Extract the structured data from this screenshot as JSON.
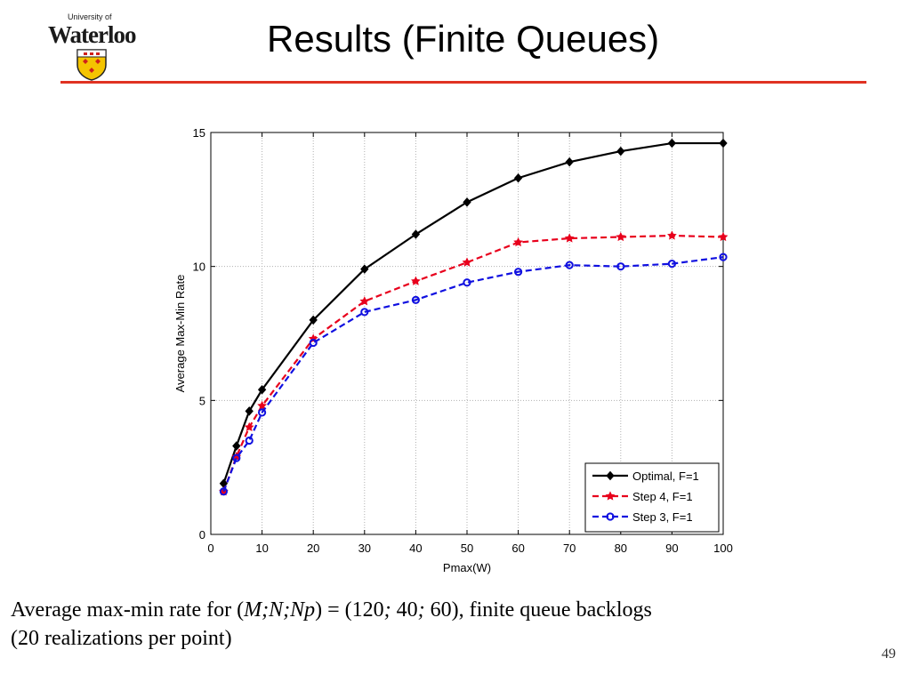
{
  "header": {
    "logo_small_text": "University of",
    "logo_name": "Waterloo",
    "title": "Results (Finite Queues)",
    "accent_color": "#e03222"
  },
  "caption": {
    "pre": "Average max-min rate for (",
    "vars": "M;N;Np",
    "mid1": ") = (120",
    "sep1": ";",
    "v2": " 40",
    "sep2": ";",
    "rest": " 60), finite queue backlogs",
    "line2": "(20 realizations per point)"
  },
  "page_number": "49",
  "chart_data": {
    "type": "line",
    "xlabel": "Pmax(W)",
    "ylabel": "Average Max-Min Rate",
    "xlim": [
      0,
      100
    ],
    "ylim": [
      0,
      15
    ],
    "xticks": [
      0,
      10,
      20,
      30,
      40,
      50,
      60,
      70,
      80,
      90,
      100
    ],
    "yticks": [
      0,
      5,
      10,
      15
    ],
    "grid": true,
    "legend_position": "bottom-right",
    "series": [
      {
        "name": "Optimal, F=1",
        "color": "#000000",
        "dash": "solid",
        "marker": "diamond",
        "x": [
          2.5,
          5,
          7.5,
          10,
          20,
          30,
          40,
          50,
          60,
          70,
          80,
          90,
          100
        ],
        "y": [
          1.9,
          3.3,
          4.6,
          5.4,
          8.0,
          9.9,
          11.2,
          12.4,
          13.3,
          13.9,
          14.3,
          14.6,
          14.6
        ]
      },
      {
        "name": "Step 4, F=1",
        "color": "#e8001c",
        "dash": "dashed",
        "marker": "star",
        "x": [
          2.5,
          5,
          7.5,
          10,
          20,
          30,
          40,
          50,
          60,
          70,
          80,
          90,
          100
        ],
        "y": [
          1.6,
          2.9,
          4.0,
          4.8,
          7.3,
          8.7,
          9.45,
          10.15,
          10.9,
          11.05,
          11.1,
          11.15,
          11.1
        ]
      },
      {
        "name": "Step 3, F=1",
        "color": "#1010e0",
        "dash": "dashed",
        "marker": "circle",
        "x": [
          2.5,
          5,
          7.5,
          10,
          20,
          30,
          40,
          50,
          60,
          70,
          80,
          90,
          100
        ],
        "y": [
          1.6,
          2.85,
          3.5,
          4.55,
          7.15,
          8.3,
          8.75,
          9.4,
          9.8,
          10.05,
          10.0,
          10.1,
          10.35
        ]
      }
    ]
  }
}
